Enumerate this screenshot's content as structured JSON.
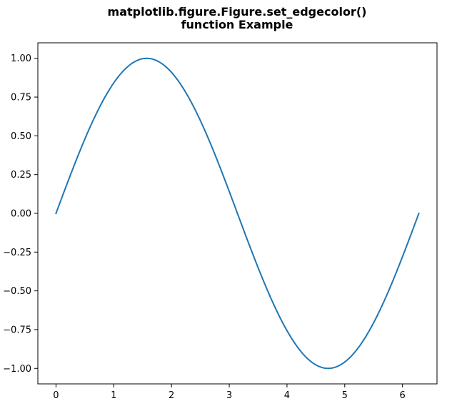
{
  "chart_data": {
    "type": "line",
    "title_lines": [
      "matplotlib.figure.Figure.set_edgecolor()",
      "function Example"
    ],
    "xlabel": "",
    "ylabel": "",
    "function": "sin(x)",
    "x_range": [
      0,
      6.283185307
    ],
    "xlim": [
      -0.3141592654,
      6.5973445725
    ],
    "ylim": [
      -1.1,
      1.1
    ],
    "x_ticks": [
      0,
      1,
      2,
      3,
      4,
      5,
      6
    ],
    "x_tick_labels": [
      "0",
      "1",
      "2",
      "3",
      "4",
      "5",
      "6"
    ],
    "y_ticks": [
      1.0,
      0.75,
      0.5,
      0.25,
      0.0,
      -0.25,
      -0.5,
      -0.75,
      -1.0
    ],
    "y_tick_labels": [
      "1.00",
      "0.75",
      "0.50",
      "0.25",
      "0.00",
      "−0.25",
      "−0.50",
      "−0.75",
      "−1.00"
    ],
    "grid": false,
    "legend": "none",
    "series": [
      {
        "color": "#1f77b4",
        "x": [
          0,
          0.25,
          0.5,
          0.75,
          1.0,
          1.25,
          1.5,
          1.5708,
          1.75,
          2.0,
          2.25,
          2.5,
          2.75,
          3.0,
          3.1416,
          3.25,
          3.5,
          3.75,
          4.0,
          4.25,
          4.5,
          4.7124,
          4.75,
          5.0,
          5.25,
          5.5,
          5.75,
          6.0,
          6.2832
        ],
        "y": [
          0,
          0.247,
          0.479,
          0.682,
          0.841,
          0.949,
          0.997,
          1.0,
          0.984,
          0.909,
          0.778,
          0.598,
          0.382,
          0.141,
          0.0,
          -0.108,
          -0.351,
          -0.572,
          -0.757,
          -0.895,
          -0.978,
          -1.0,
          -0.999,
          -0.959,
          -0.859,
          -0.706,
          -0.508,
          -0.279,
          0.0
        ]
      }
    ]
  }
}
